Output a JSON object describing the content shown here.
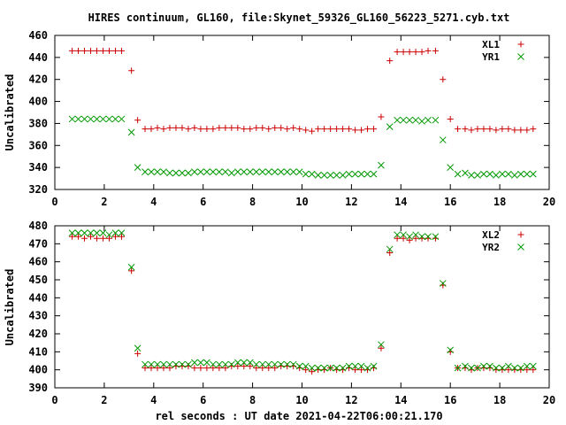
{
  "title": "HIRES continuum, GL160, file:Skynet_59326_GL160_56223_5271.cyb.txt",
  "chart_data": [
    {
      "type": "scatter",
      "ylabel": "Uncalibrated",
      "xlabel": "",
      "xlim": [
        0,
        20
      ],
      "ylim": [
        320,
        460
      ],
      "xticks": [
        0,
        2,
        4,
        6,
        8,
        10,
        12,
        14,
        16,
        18,
        20
      ],
      "yticks": [
        320,
        340,
        360,
        380,
        400,
        420,
        440,
        460
      ],
      "legend_position": "top-right",
      "series": [
        {
          "name": "XL1",
          "marker": "+",
          "color": "#cc0000",
          "x": [
            0.7,
            0.95,
            1.2,
            1.45,
            1.7,
            1.95,
            2.2,
            2.45,
            2.7,
            3.1,
            3.35,
            3.65,
            3.9,
            4.15,
            4.4,
            4.65,
            4.9,
            5.15,
            5.4,
            5.65,
            5.9,
            6.15,
            6.4,
            6.65,
            6.9,
            7.15,
            7.4,
            7.65,
            7.9,
            8.15,
            8.4,
            8.65,
            8.9,
            9.15,
            9.4,
            9.65,
            9.9,
            10.15,
            10.4,
            10.65,
            10.9,
            11.15,
            11.4,
            11.65,
            11.9,
            12.15,
            12.4,
            12.65,
            12.9,
            13.2,
            13.55,
            13.85,
            14.1,
            14.35,
            14.6,
            14.85,
            15.1,
            15.4,
            15.7,
            16.0,
            16.3,
            16.6,
            16.85,
            17.1,
            17.35,
            17.6,
            17.85,
            18.1,
            18.35,
            18.6,
            18.85,
            19.1,
            19.35
          ],
          "y": [
            446,
            446,
            446,
            446,
            446,
            446,
            446,
            446,
            446,
            428,
            383,
            375,
            375,
            376,
            375,
            376,
            376,
            376,
            375,
            376,
            375,
            375,
            375,
            376,
            376,
            376,
            376,
            375,
            375,
            376,
            376,
            375,
            376,
            376,
            375,
            376,
            375,
            374,
            373,
            375,
            375,
            375,
            375,
            375,
            375,
            374,
            374,
            375,
            375,
            386,
            437,
            445,
            445,
            445,
            445,
            445,
            446,
            446,
            420,
            384,
            375,
            375,
            374,
            375,
            375,
            375,
            374,
            375,
            375,
            374,
            374,
            374,
            375
          ]
        },
        {
          "name": "YR1",
          "marker": "x",
          "color": "#009900",
          "x": [
            0.7,
            0.95,
            1.2,
            1.45,
            1.7,
            1.95,
            2.2,
            2.45,
            2.7,
            3.1,
            3.35,
            3.65,
            3.9,
            4.15,
            4.4,
            4.65,
            4.9,
            5.15,
            5.4,
            5.65,
            5.9,
            6.15,
            6.4,
            6.65,
            6.9,
            7.15,
            7.4,
            7.65,
            7.9,
            8.15,
            8.4,
            8.65,
            8.9,
            9.15,
            9.4,
            9.65,
            9.9,
            10.15,
            10.4,
            10.65,
            10.9,
            11.15,
            11.4,
            11.65,
            11.9,
            12.15,
            12.4,
            12.65,
            12.9,
            13.2,
            13.55,
            13.85,
            14.1,
            14.35,
            14.6,
            14.85,
            15.1,
            15.4,
            15.7,
            16.0,
            16.3,
            16.6,
            16.85,
            17.1,
            17.35,
            17.6,
            17.85,
            18.1,
            18.35,
            18.6,
            18.85,
            19.1,
            19.35
          ],
          "y": [
            384,
            384,
            384,
            384,
            384,
            384,
            384,
            384,
            384,
            372,
            340,
            336,
            336,
            336,
            336,
            335,
            335,
            335,
            335,
            336,
            336,
            336,
            336,
            336,
            336,
            335,
            336,
            336,
            336,
            336,
            336,
            336,
            336,
            336,
            336,
            336,
            336,
            334,
            334,
            333,
            333,
            333,
            333,
            333,
            334,
            334,
            334,
            334,
            334,
            342,
            377,
            383,
            383,
            383,
            383,
            382,
            383,
            383,
            365,
            340,
            334,
            335,
            333,
            333,
            334,
            334,
            333,
            334,
            334,
            333,
            334,
            334,
            334
          ]
        }
      ]
    },
    {
      "type": "scatter",
      "ylabel": "Uncalibrated",
      "xlabel": "rel seconds : UT date 2021-04-22T06:00:21.170",
      "xlim": [
        0,
        20
      ],
      "ylim": [
        390,
        480
      ],
      "xticks": [
        0,
        2,
        4,
        6,
        8,
        10,
        12,
        14,
        16,
        18,
        20
      ],
      "yticks": [
        390,
        400,
        410,
        420,
        430,
        440,
        450,
        460,
        470,
        480
      ],
      "legend_position": "top-right",
      "series": [
        {
          "name": "XL2",
          "marker": "+",
          "color": "#cc0000",
          "x": [
            0.7,
            0.95,
            1.2,
            1.45,
            1.7,
            1.95,
            2.2,
            2.45,
            2.7,
            3.1,
            3.35,
            3.65,
            3.9,
            4.15,
            4.4,
            4.65,
            4.9,
            5.15,
            5.4,
            5.65,
            5.9,
            6.15,
            6.4,
            6.65,
            6.9,
            7.15,
            7.4,
            7.65,
            7.9,
            8.15,
            8.4,
            8.65,
            8.9,
            9.15,
            9.4,
            9.65,
            9.9,
            10.15,
            10.4,
            10.65,
            10.9,
            11.15,
            11.4,
            11.65,
            11.9,
            12.15,
            12.4,
            12.65,
            12.9,
            13.2,
            13.55,
            13.85,
            14.1,
            14.35,
            14.6,
            14.85,
            15.1,
            15.4,
            15.7,
            16.0,
            16.3,
            16.6,
            16.85,
            17.1,
            17.35,
            17.6,
            17.85,
            18.1,
            18.35,
            18.6,
            18.85,
            19.1,
            19.35
          ],
          "y": [
            474,
            474,
            473,
            474,
            473,
            473,
            473,
            474,
            474,
            455,
            409,
            401,
            401,
            401,
            401,
            401,
            402,
            402,
            402,
            401,
            401,
            401,
            401,
            401,
            401,
            402,
            402,
            402,
            402,
            401,
            401,
            401,
            401,
            402,
            402,
            402,
            401,
            400,
            399,
            400,
            400,
            401,
            400,
            400,
            401,
            400,
            400,
            400,
            401,
            412,
            465,
            473,
            473,
            472,
            473,
            473,
            473,
            473,
            447,
            410,
            401,
            401,
            400,
            401,
            401,
            401,
            400,
            400,
            400,
            400,
            400,
            400,
            400
          ]
        },
        {
          "name": "YR2",
          "marker": "x",
          "color": "#009900",
          "x": [
            0.7,
            0.95,
            1.2,
            1.45,
            1.7,
            1.95,
            2.2,
            2.45,
            2.7,
            3.1,
            3.35,
            3.65,
            3.9,
            4.15,
            4.4,
            4.65,
            4.9,
            5.15,
            5.4,
            5.65,
            5.9,
            6.15,
            6.4,
            6.65,
            6.9,
            7.15,
            7.4,
            7.65,
            7.9,
            8.15,
            8.4,
            8.65,
            8.9,
            9.15,
            9.4,
            9.65,
            9.9,
            10.15,
            10.4,
            10.65,
            10.9,
            11.15,
            11.4,
            11.65,
            11.9,
            12.15,
            12.4,
            12.65,
            12.9,
            13.2,
            13.55,
            13.85,
            14.1,
            14.35,
            14.6,
            14.85,
            15.1,
            15.4,
            15.7,
            16.0,
            16.3,
            16.6,
            16.85,
            17.1,
            17.35,
            17.6,
            17.85,
            18.1,
            18.35,
            18.6,
            18.85,
            19.1,
            19.35
          ],
          "y": [
            476,
            476,
            476,
            476,
            476,
            476,
            475,
            476,
            476,
            457,
            412,
            403,
            403,
            403,
            403,
            403,
            403,
            403,
            403,
            404,
            404,
            404,
            403,
            403,
            403,
            403,
            404,
            404,
            404,
            403,
            403,
            403,
            403,
            403,
            403,
            403,
            402,
            402,
            401,
            401,
            401,
            401,
            401,
            401,
            402,
            402,
            402,
            401,
            402,
            414,
            467,
            475,
            475,
            474,
            475,
            474,
            474,
            474,
            448,
            411,
            401,
            402,
            401,
            401,
            402,
            402,
            401,
            401,
            402,
            401,
            401,
            402,
            402
          ]
        }
      ]
    }
  ]
}
